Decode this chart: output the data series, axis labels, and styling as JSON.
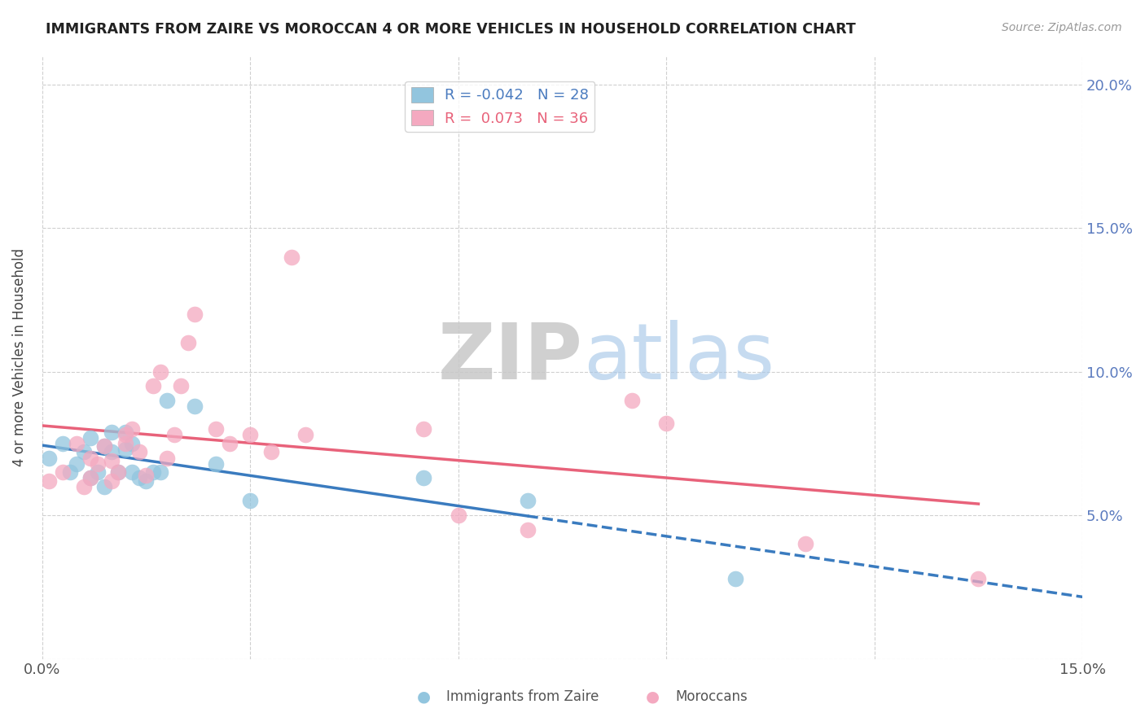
{
  "title": "IMMIGRANTS FROM ZAIRE VS MOROCCAN 4 OR MORE VEHICLES IN HOUSEHOLD CORRELATION CHART",
  "source": "Source: ZipAtlas.com",
  "ylabel": "4 or more Vehicles in Household",
  "xlabel_blue": "Immigrants from Zaire",
  "xlabel_pink": "Moroccans",
  "xlim": [
    0.0,
    0.15
  ],
  "ylim": [
    0.0,
    0.21
  ],
  "xtick_pos": [
    0.0,
    0.03,
    0.06,
    0.09,
    0.12,
    0.15
  ],
  "xtick_labels": [
    "0.0%",
    "",
    "",
    "",
    "",
    "15.0%"
  ],
  "ytick_pos": [
    0.0,
    0.05,
    0.1,
    0.15,
    0.2
  ],
  "ytick_labels": [
    "",
    "5.0%",
    "10.0%",
    "15.0%",
    "20.0%"
  ],
  "legend_blue_r": "-0.042",
  "legend_blue_n": "28",
  "legend_pink_r": "0.073",
  "legend_pink_n": "36",
  "blue_color": "#92c5de",
  "pink_color": "#f4a9c0",
  "blue_line_color": "#3a7bbf",
  "pink_line_color": "#e8627a",
  "watermark_color": "#d8eaf5",
  "blue_scatter_x": [
    0.001,
    0.003,
    0.004,
    0.005,
    0.006,
    0.007,
    0.007,
    0.008,
    0.009,
    0.009,
    0.01,
    0.01,
    0.011,
    0.012,
    0.012,
    0.013,
    0.013,
    0.014,
    0.015,
    0.016,
    0.017,
    0.018,
    0.022,
    0.025,
    0.03,
    0.055,
    0.07,
    0.1
  ],
  "blue_scatter_y": [
    0.07,
    0.075,
    0.065,
    0.068,
    0.072,
    0.063,
    0.077,
    0.065,
    0.06,
    0.074,
    0.072,
    0.079,
    0.065,
    0.073,
    0.079,
    0.065,
    0.075,
    0.063,
    0.062,
    0.065,
    0.065,
    0.09,
    0.088,
    0.068,
    0.055,
    0.063,
    0.055,
    0.028
  ],
  "pink_scatter_x": [
    0.001,
    0.003,
    0.005,
    0.006,
    0.007,
    0.007,
    0.008,
    0.009,
    0.01,
    0.01,
    0.011,
    0.012,
    0.012,
    0.013,
    0.014,
    0.015,
    0.016,
    0.017,
    0.018,
    0.019,
    0.02,
    0.021,
    0.022,
    0.025,
    0.027,
    0.03,
    0.033,
    0.036,
    0.038,
    0.055,
    0.06,
    0.07,
    0.085,
    0.09,
    0.11,
    0.135
  ],
  "pink_scatter_y": [
    0.062,
    0.065,
    0.075,
    0.06,
    0.063,
    0.07,
    0.068,
    0.074,
    0.062,
    0.069,
    0.065,
    0.075,
    0.078,
    0.08,
    0.072,
    0.064,
    0.095,
    0.1,
    0.07,
    0.078,
    0.095,
    0.11,
    0.12,
    0.08,
    0.075,
    0.078,
    0.072,
    0.14,
    0.078,
    0.08,
    0.05,
    0.045,
    0.09,
    0.082,
    0.04,
    0.028
  ]
}
